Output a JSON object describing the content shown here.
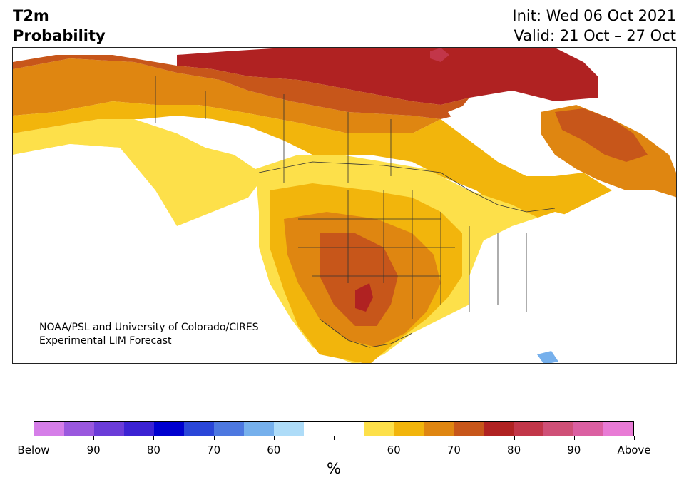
{
  "title": {
    "line1": "T2m",
    "line2": "Probability"
  },
  "dates": {
    "init": "Init: Wed 06 Oct 2021",
    "valid": "Valid: 21 Oct – 27 Oct"
  },
  "credit": {
    "line1": "NOAA/PSL and University of Colorado/CIRES",
    "line2": "Experimental LIM Forecast"
  },
  "colorbar": {
    "colors": [
      "#d57ee8",
      "#9a58de",
      "#6b3cd8",
      "#3b22d3",
      "#0000cf",
      "#2a46d8",
      "#4d78e0",
      "#76b0ec",
      "#aedcf8",
      "#ffffff",
      "#ffffff",
      "#fde04a",
      "#f2b50c",
      "#df8611",
      "#c7561a",
      "#b02222",
      "#c23649",
      "#cf5077",
      "#db60a2",
      "#e87bd5"
    ],
    "ticks": [
      "Below",
      "90",
      "80",
      "70",
      "60",
      "",
      "60",
      "70",
      "80",
      "90",
      "Above"
    ],
    "unit": "%"
  },
  "map": {
    "ocean": "#ffffff",
    "land": "#ffffff",
    "border_color": "#333333"
  }
}
